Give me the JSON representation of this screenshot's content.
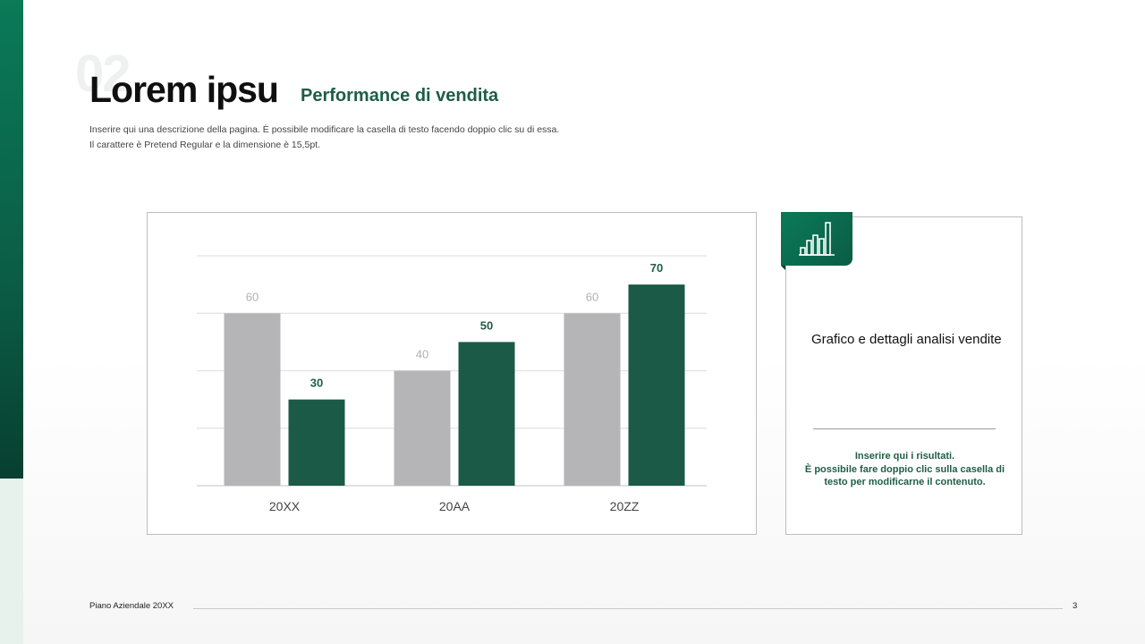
{
  "slide": {
    "section_number": "02",
    "title": "Lorem ipsu",
    "subtitle": "Performance di vendita",
    "description": [
      "Inserire qui una descrizione della pagina. È possibile modificare la casella di testo facendo doppio clic su di essa.",
      "Il carattere è Pretend Regular e la dimensione è 15,5pt."
    ]
  },
  "card": {
    "icon": "bar-chart-icon",
    "heading": "Grafico e dettagli analisi vendite",
    "result_lines": [
      "Inserire qui i risultati.",
      "È possibile fare doppio clic sulla casella di testo per modificarne il contenuto."
    ]
  },
  "footer": {
    "left_text": "Piano Aziendale 20XX",
    "page_number": "3"
  },
  "colors": {
    "accent_dark": "#1b5a47",
    "accent_gradient_top": "#0a7a57",
    "series_grey": "#b5b4b6"
  },
  "chart_data": {
    "type": "bar",
    "categories": [
      "20XX",
      "20AA",
      "20ZZ"
    ],
    "series": [
      {
        "values": [
          60,
          40,
          60
        ],
        "color": "#b5b4b6",
        "label_color": "#b0b0b0"
      },
      {
        "values": [
          30,
          50,
          70
        ],
        "color": "#1b5a47",
        "label_color": "#1e5e45"
      }
    ],
    "ylim": [
      0,
      80
    ],
    "grid": true,
    "data_labels": true,
    "title": "",
    "xlabel": "",
    "ylabel": ""
  }
}
